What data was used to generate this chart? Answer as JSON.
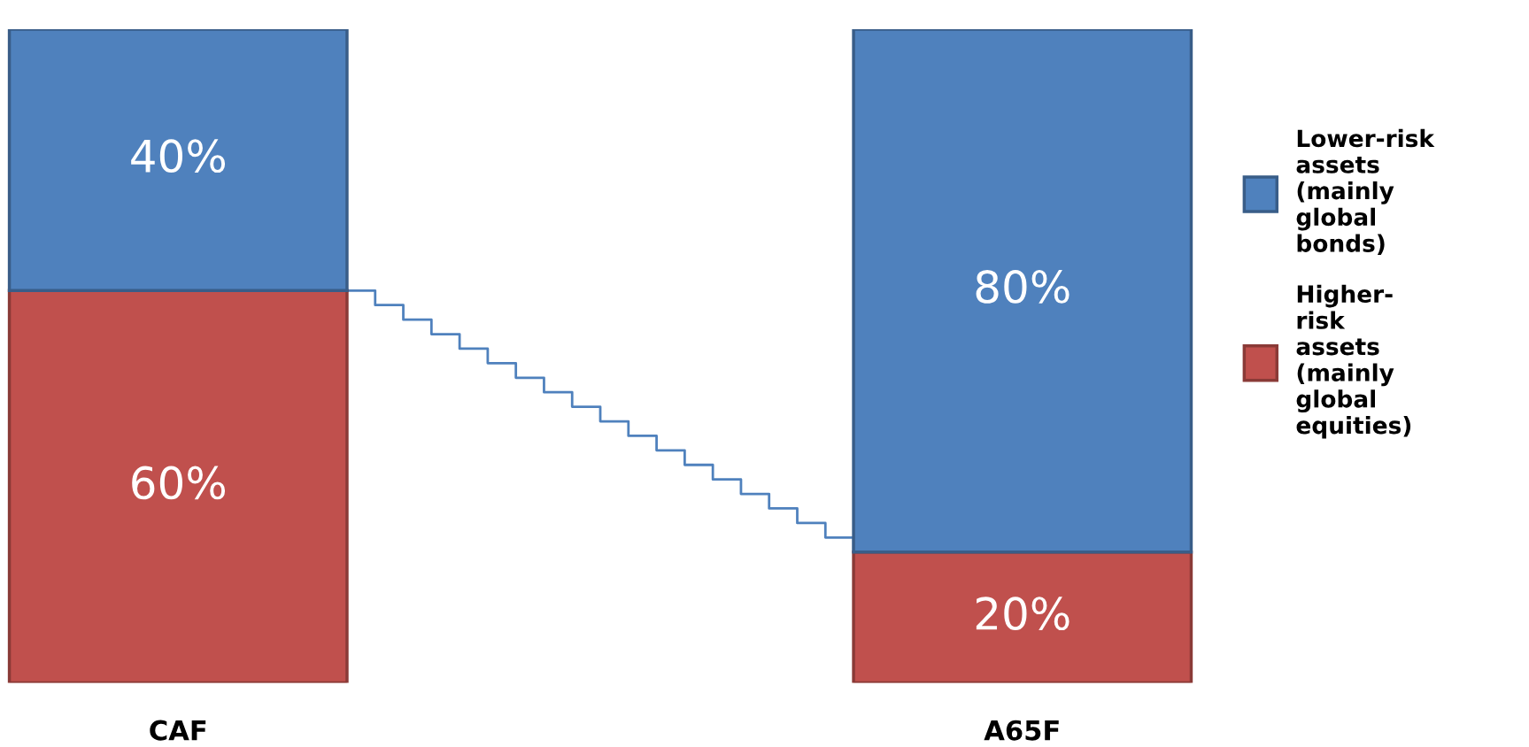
{
  "chart_data": {
    "type": "bar",
    "stacked": true,
    "legend": "right",
    "categories": [
      "CAF",
      "A65F"
    ],
    "series": [
      {
        "name": "Higher-risk assets (mainly global equities)",
        "color": "#c0504d",
        "values": [
          60,
          20
        ],
        "value_labels": [
          "60%",
          "20%"
        ]
      },
      {
        "name": "Lower-risk assets (mainly global bonds)",
        "color": "#4f81bd",
        "values": [
          40,
          80
        ],
        "value_labels": [
          "40%",
          "80%"
        ]
      }
    ]
  }
}
